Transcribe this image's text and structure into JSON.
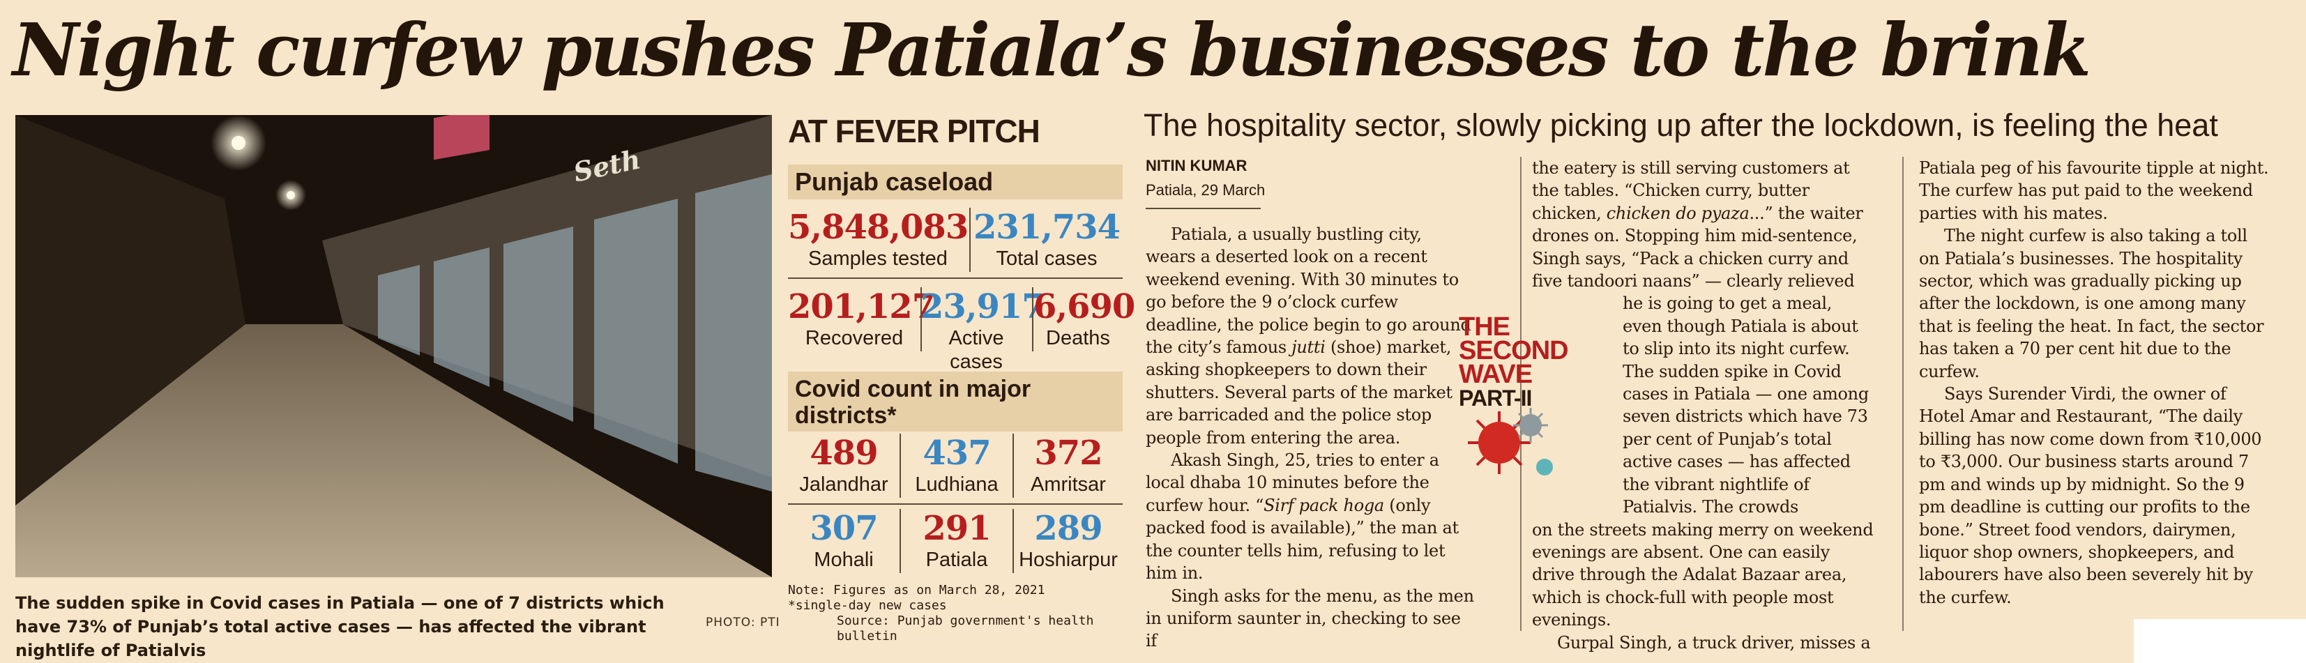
{
  "headline": "Night curfew pushes Patiala’s businesses to the brink",
  "photo": {
    "caption": "The sudden spike in Covid cases in Patiala — one of 7 districts which have 73% of Punjab’s total active cases — has affected the vibrant nightlife of Patialvis",
    "credit": "PHOTO: PTI",
    "sign_text": "Seth"
  },
  "panel": {
    "title": "AT FEVER PITCH",
    "caseload_heading": "Punjab caseload",
    "caseload": [
      {
        "value": "5,848,083",
        "label": "Samples tested",
        "color": "#b61e1e"
      },
      {
        "value": "231,734",
        "label": "Total cases",
        "color": "#3a86c2"
      },
      {
        "value": "201,127",
        "label": "Recovered",
        "color": "#b61e1e"
      },
      {
        "value": "23,917",
        "label": "Active cases",
        "color": "#3a86c2"
      },
      {
        "value": "6,690",
        "label": "Deaths",
        "color": "#b61e1e"
      }
    ],
    "districts_heading": "Covid count in major districts*",
    "districts": [
      {
        "value": "489",
        "label": "Jalandhar",
        "color": "#b61e1e"
      },
      {
        "value": "437",
        "label": "Ludhiana",
        "color": "#3a86c2"
      },
      {
        "value": "372",
        "label": "Amritsar",
        "color": "#b61e1e"
      },
      {
        "value": "307",
        "label": "Mohali",
        "color": "#3a86c2"
      },
      {
        "value": "291",
        "label": "Patiala",
        "color": "#b61e1e"
      },
      {
        "value": "289",
        "label": "Hoshiarpur",
        "color": "#3a86c2"
      }
    ],
    "note": "Note: Figures as on March 28, 2021",
    "note2": "*single-day new cases",
    "source": "Source: Punjab government's health bulletin"
  },
  "deck": "The hospitality sector, slowly picking up after the lockdown, is feeling the heat",
  "byline": "NITIN KUMAR",
  "dateline": "Patiala, 29 March",
  "series_tag": {
    "line1": "THE",
    "line2": "SECOND",
    "line3": "WAVE",
    "line4": "PART-II"
  },
  "col1": {
    "p1": "Patiala, a usually bustling city, wears a deserted look on a recent weekend evening. With 30 minutes to go before the 9 o’clock curfew deadline, the police begin to go around the city’s famous ",
    "p1_em": "jutti",
    "p1_b": " (shoe) market, asking shopkeepers to down their shutters. Several parts of the market are barricaded and the police stop people from entering the area.",
    "p2": "Akash Singh, 25, tries to enter a local dhaba 10 minutes before the curfew hour. “",
    "p2_em": "Sirf pack hoga",
    "p2_b": " (only packed food is available),” the man at the counter tells him, refusing to let him in.",
    "p3": "Singh asks for the menu, as the men in uniform saunter in, checking to see if"
  },
  "col2": {
    "p1": "the eatery is still serving customers at the tables. “Chicken curry, butter chicken, ",
    "p1_em": "chicken do pyaza",
    "p1_b": "...” the waiter drones on. Stopping him mid-sentence, Singh says, “Pack a chicken curry and five tandoori naans” — clearly relieved",
    "p1_c": "he is going to get a meal, even though Patiala is about to slip into its night curfew.",
    "p2": "The sudden spike in Covid cases in Patiala — one among seven districts which have 73 per cent of Punjab’s total active cases — has affected the vibrant nightlife of Patialvis. The crowds",
    "p2_b": "on the streets making merry on weekend evenings are absent. One can easily drive through the Adalat Bazaar area, which is chock-full with people most evenings.",
    "p3": "Gurpal Singh, a truck driver, misses a"
  },
  "col3": {
    "p1": "Patiala peg of his favourite tipple at night. The curfew has put paid to the weekend parties with his mates.",
    "p2": "The night curfew is also taking a toll on Patiala’s businesses. The hospitality sector, which was gradually picking up after the lockdown, is one among many that is feeling the heat. In fact, the sector has taken a 70 per cent hit due to the curfew.",
    "p3": "Says Surender Virdi, the owner of Hotel Amar and Restaurant, “The daily billing has now come down from ₹10,000 to ₹3,000. Our business starts around 7 pm and winds up by midnight. So the 9 pm deadline is cutting our profits to the bone.” Street food vendors, dairymen, liquor shop owners, shopkeepers, and labourers have also been severely hit by the curfew."
  }
}
